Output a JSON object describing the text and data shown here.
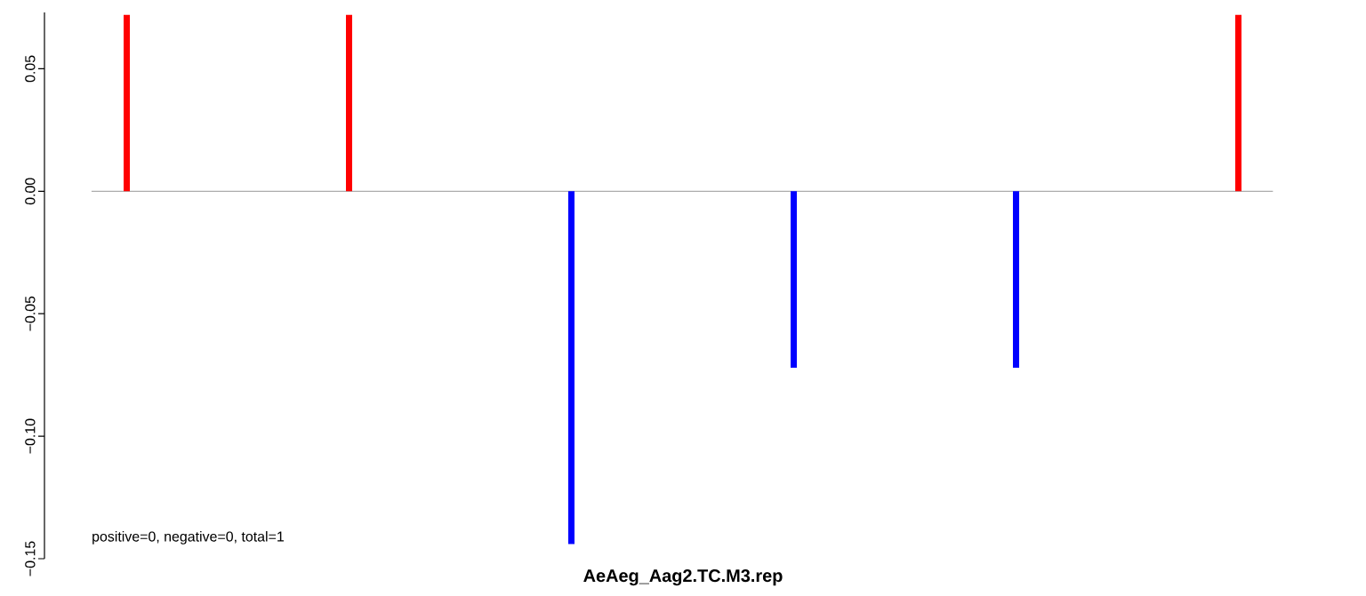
{
  "chart_data": {
    "type": "bar",
    "xlabel": "AeAeg_Aag2.TC.M3.rep",
    "categories": [
      null,
      null,
      null,
      null,
      null,
      null
    ],
    "values": [
      0.072,
      0.072,
      -0.144,
      -0.072,
      -0.072,
      0.072
    ],
    "colors": [
      "#ff0000",
      "#ff0000",
      "#0000ff",
      "#0000ff",
      "#0000ff",
      "#ff0000"
    ],
    "ylim": [
      -0.15,
      0.073
    ],
    "yticks": [
      {
        "value": -0.15,
        "label": "−0.15"
      },
      {
        "value": -0.1,
        "label": "−0.10"
      },
      {
        "value": -0.05,
        "label": "−0.05"
      },
      {
        "value": 0,
        "label": "0.00"
      },
      {
        "value": 0.05,
        "label": "0.05"
      }
    ],
    "tick_labels": "y",
    "ref_lines": [
      {
        "axis": "y",
        "value": 0,
        "color": "#999999"
      }
    ],
    "annotations": [
      "positive=0, negative=0, total=1"
    ]
  }
}
